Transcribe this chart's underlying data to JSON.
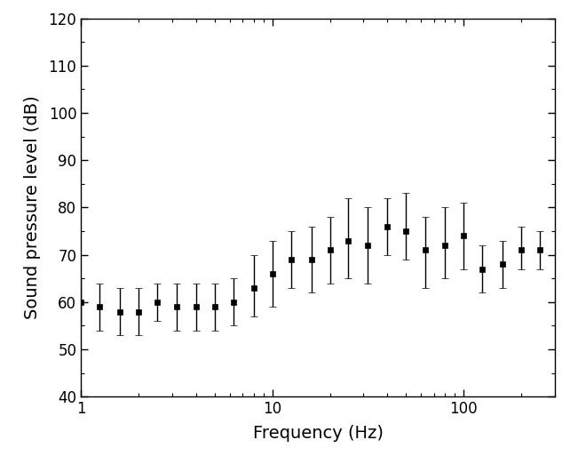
{
  "frequencies": [
    1,
    1.25,
    1.6,
    2,
    2.5,
    3.15,
    4,
    5,
    6.3,
    8,
    10,
    12.5,
    16,
    20,
    25,
    31.5,
    40,
    50,
    63,
    80,
    100,
    125,
    160,
    200,
    250
  ],
  "values": [
    60,
    59,
    58,
    58,
    60,
    59,
    59,
    59,
    60,
    63,
    66,
    69,
    69,
    71,
    73,
    72,
    76,
    75,
    71,
    72,
    74,
    67,
    68,
    71,
    71
  ],
  "yerr_upper": [
    5,
    5,
    5,
    5,
    4,
    5,
    5,
    5,
    5,
    7,
    7,
    6,
    7,
    7,
    9,
    8,
    6,
    8,
    7,
    8,
    7,
    5,
    5,
    5,
    4
  ],
  "yerr_lower": [
    5,
    5,
    5,
    5,
    4,
    5,
    5,
    5,
    5,
    6,
    7,
    6,
    7,
    7,
    8,
    8,
    6,
    6,
    8,
    7,
    7,
    5,
    5,
    4,
    4
  ],
  "xlabel": "Frequency (Hz)",
  "ylabel": "Sound pressure level (dB)",
  "ylim": [
    40,
    120
  ],
  "xlim": [
    1,
    300
  ],
  "yticks": [
    40,
    50,
    60,
    70,
    80,
    90,
    100,
    110,
    120
  ],
  "xticks_major": [
    1,
    10,
    100
  ],
  "xtick_labels": [
    "1",
    "10",
    "100"
  ],
  "marker_color": "#000000",
  "marker_size": 4.5,
  "line_width": 1.0,
  "capsize": 3,
  "background_color": "#ffffff",
  "xlabel_fontsize": 14,
  "ylabel_fontsize": 14,
  "tick_labelsize": 12
}
